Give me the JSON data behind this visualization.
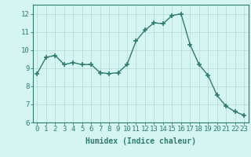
{
  "x": [
    0,
    1,
    2,
    3,
    4,
    5,
    6,
    7,
    8,
    9,
    10,
    11,
    12,
    13,
    14,
    15,
    16,
    17,
    18,
    19,
    20,
    21,
    22,
    23
  ],
  "y": [
    8.7,
    9.6,
    9.7,
    9.2,
    9.3,
    9.2,
    9.2,
    8.75,
    8.7,
    8.75,
    9.2,
    10.5,
    11.1,
    11.5,
    11.45,
    11.9,
    12.0,
    10.3,
    9.2,
    8.6,
    7.5,
    6.9,
    6.6,
    6.4
  ],
  "line_color": "#2e7d6e",
  "marker": "+",
  "marker_size": 4,
  "bg_color": "#d4f5f0",
  "grid_color": "#b8ddd8",
  "xlabel": "Humidex (Indice chaleur)",
  "xlim": [
    -0.5,
    23.5
  ],
  "ylim": [
    6,
    12.5
  ],
  "yticks": [
    6,
    7,
    8,
    9,
    10,
    11,
    12
  ],
  "xticks": [
    0,
    1,
    2,
    3,
    4,
    5,
    6,
    7,
    8,
    9,
    10,
    11,
    12,
    13,
    14,
    15,
    16,
    17,
    18,
    19,
    20,
    21,
    22,
    23
  ],
  "xlabel_fontsize": 7,
  "tick_fontsize": 6.5,
  "tick_color": "#2e7d6e",
  "axis_color": "#2e7d6e",
  "line_width": 1.0,
  "marker_color": "#2e7d6e"
}
